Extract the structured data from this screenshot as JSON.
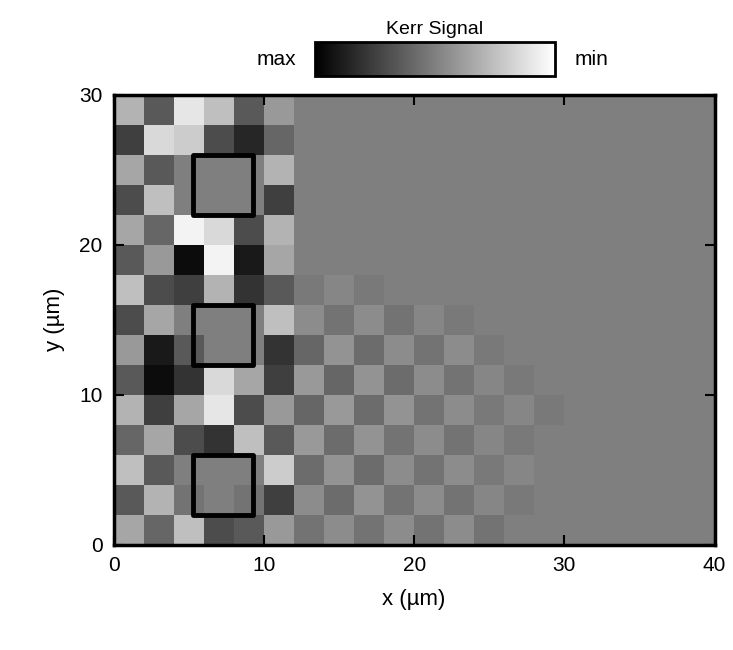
{
  "chart_data": {
    "type": "heatmap",
    "xlabel": "x (µm)",
    "ylabel": "y (µm)",
    "xlim": [
      0,
      40
    ],
    "ylim": [
      0,
      30
    ],
    "xticks": [
      0,
      10,
      20,
      30,
      40
    ],
    "yticks": [
      0,
      10,
      20,
      30
    ],
    "x": [
      0,
      2,
      4,
      6,
      8,
      10,
      12,
      14,
      16,
      18,
      20,
      22,
      24,
      26,
      28,
      30,
      32,
      34,
      36,
      38,
      40
    ],
    "y": [
      0,
      2,
      4,
      6,
      8,
      10,
      12,
      14,
      16,
      18,
      20,
      22,
      24,
      26,
      28,
      30
    ],
    "cells": [
      [
        -0.3,
        0.2,
        -0.5,
        0.4,
        0.3,
        -0.2,
        0.1,
        -0.1,
        0.1,
        -0.1,
        0.1,
        -0.1,
        0.1,
        0,
        0,
        0,
        0,
        0,
        0,
        0
      ],
      [
        0.3,
        -0.4,
        0.1,
        0,
        0.1,
        0.5,
        -0.1,
        0.15,
        -0.15,
        0.1,
        -0.1,
        0.1,
        -0.05,
        0.05,
        0,
        0,
        0,
        0,
        0,
        0
      ],
      [
        -0.5,
        0.3,
        0,
        0,
        0,
        -0.6,
        0.15,
        -0.15,
        0.15,
        -0.1,
        0.1,
        -0.1,
        0.05,
        -0.05,
        0,
        0,
        0,
        0,
        0,
        0
      ],
      [
        0.2,
        -0.3,
        0.4,
        0.6,
        -0.5,
        0.3,
        -0.2,
        0.15,
        -0.15,
        0.1,
        -0.1,
        0.1,
        -0.05,
        0.05,
        0,
        0,
        0,
        0,
        0,
        0
      ],
      [
        -0.4,
        0.5,
        -0.3,
        -0.8,
        0.4,
        -0.2,
        0.2,
        -0.2,
        0.15,
        -0.15,
        0.1,
        -0.1,
        0.05,
        -0.05,
        0.05,
        0,
        0,
        0,
        0,
        0
      ],
      [
        0.3,
        0.9,
        0.6,
        -0.7,
        -0.3,
        0.5,
        -0.2,
        0.2,
        -0.15,
        0.15,
        -0.1,
        0.1,
        -0.05,
        0.05,
        0,
        0,
        0,
        0,
        0,
        0
      ],
      [
        -0.2,
        0.8,
        0.3,
        0,
        0,
        0.6,
        0.2,
        -0.15,
        0.15,
        -0.1,
        0.1,
        -0.1,
        0.05,
        0,
        0,
        0,
        0,
        0,
        0,
        0
      ],
      [
        0.4,
        -0.3,
        0,
        0,
        0,
        -0.5,
        -0.1,
        0.1,
        -0.1,
        0.1,
        -0.05,
        0.05,
        0,
        0,
        0,
        0,
        0,
        0,
        0,
        0
      ],
      [
        -0.5,
        0.4,
        0.5,
        -0.4,
        0.6,
        0.3,
        0.05,
        -0.05,
        0.05,
        0,
        0,
        0,
        0,
        0,
        0,
        0,
        0,
        0,
        0,
        0
      ],
      [
        0.3,
        -0.2,
        0.9,
        -0.9,
        0.8,
        -0.3,
        0,
        0,
        0,
        0,
        0,
        0,
        0,
        0,
        0,
        0,
        0,
        0,
        0,
        0
      ],
      [
        -0.3,
        0.2,
        -0.9,
        -0.7,
        0.4,
        -0.4,
        0,
        0,
        0,
        0,
        0,
        0,
        0,
        0,
        0,
        0,
        0,
        0,
        0,
        0
      ],
      [
        0.4,
        -0.5,
        0,
        0,
        0,
        0.5,
        0,
        0,
        0,
        0,
        0,
        0,
        0,
        0,
        0,
        0,
        0,
        0,
        0,
        0
      ],
      [
        -0.3,
        0.3,
        0,
        0,
        0,
        -0.4,
        0,
        0,
        0,
        0,
        0,
        0,
        0,
        0,
        0,
        0,
        0,
        0,
        0,
        0
      ],
      [
        0.5,
        -0.7,
        -0.6,
        0.4,
        0.7,
        0.2,
        0,
        0,
        0,
        0,
        0,
        0,
        0,
        0,
        0,
        0,
        0,
        0,
        0,
        0
      ],
      [
        -0.4,
        0.3,
        -0.8,
        -0.5,
        0.3,
        -0.2,
        0,
        0,
        0,
        0,
        0,
        0,
        0,
        0,
        0,
        0,
        0,
        0,
        0,
        0
      ]
    ],
    "colorbar": {
      "label": "Kerr Signal",
      "range": [
        -1,
        1
      ],
      "ticks": [
        {
          "value": 1,
          "label": "max"
        },
        {
          "value": -1,
          "label": "min"
        }
      ]
    },
    "squares": [
      {
        "x": [
          5.3,
          9.3
        ],
        "y": [
          2,
          6
        ]
      },
      {
        "x": [
          5.3,
          9.3
        ],
        "y": [
          12,
          16
        ]
      },
      {
        "x": [
          5.3,
          9.3
        ],
        "y": [
          22,
          26
        ]
      }
    ]
  }
}
